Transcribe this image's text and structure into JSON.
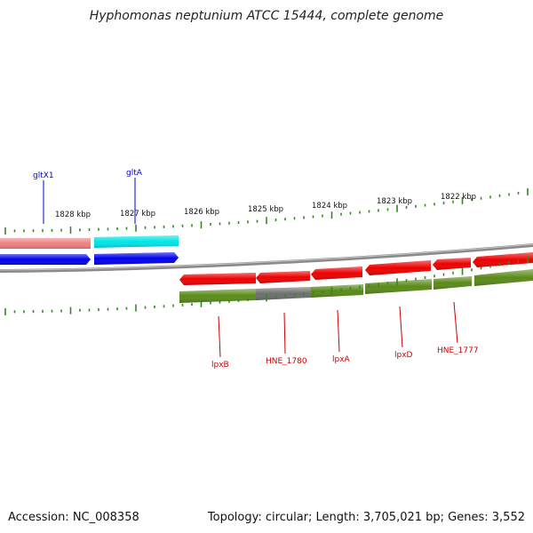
{
  "title": "Hyphomonas neptunium ATCC 15444, complete genome",
  "footer": {
    "accession": "Accession: NC_008358",
    "info": "Topology: circular; Length: 3,705,021 bp; Genes: 3,552"
  },
  "colors": {
    "backbone": "#8a8a8a",
    "tick": "#2f8a1e",
    "forward_gene_label": "#0000cc",
    "reverse_gene_label": "#cc0000",
    "gene_salmon": "#f08080",
    "gene_cyan": "#00e5e5",
    "gene_blue": "#0000ee",
    "gene_red": "#ee0000",
    "gene_olive": "#5a8a1a",
    "gene_grey": "#6e6e6e"
  },
  "ruler": {
    "labels": [
      "1828 kbp",
      "1827 kbp",
      "1826 kbp",
      "1825 kbp",
      "1824 kbp",
      "1823 kbp",
      "1822 kbp"
    ]
  },
  "genes": {
    "forward": [
      {
        "name": "gltX1",
        "color_key": "gene_salmon"
      },
      {
        "name": "gltA",
        "color_key": "gene_cyan"
      }
    ],
    "reverse": [
      {
        "name": "lpxB"
      },
      {
        "name": "HNE_1780"
      },
      {
        "name": "lpxA"
      },
      {
        "name": "lpxD"
      },
      {
        "name": "HNE_1777"
      }
    ]
  }
}
